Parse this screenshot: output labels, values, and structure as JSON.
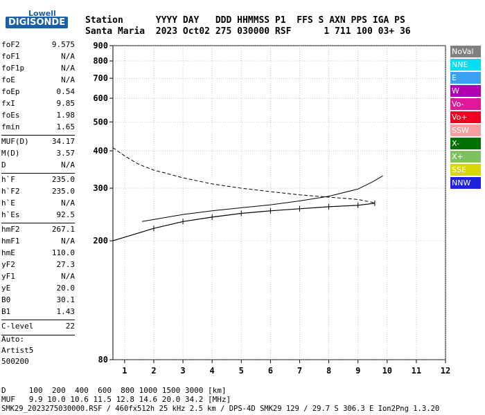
{
  "logo": {
    "line1": "Lowell",
    "line2": "DIGISONDE"
  },
  "header": {
    "row1": "Station      YYYY DAY   DDD HHMMSS P1  FFS S AXN PPS IGA PS",
    "row2": "Santa Maria  2023 Oct02 275 030000 RSF      1 711 100 03+ 36"
  },
  "params": [
    {
      "name": "foF2",
      "value": "9.575"
    },
    {
      "name": "foF1",
      "value": "N/A"
    },
    {
      "name": "foF1p",
      "value": "N/A"
    },
    {
      "name": "foE",
      "value": "N/A"
    },
    {
      "name": "foEp",
      "value": "0.54"
    },
    {
      "name": "fxI",
      "value": "9.85"
    },
    {
      "name": "foEs",
      "value": "1.98"
    },
    {
      "name": "fmin",
      "value": "1.65"
    },
    {
      "name": "MUF(D)",
      "value": "34.17"
    },
    {
      "name": "M(D)",
      "value": "3.57"
    },
    {
      "name": "D",
      "value": "N/A"
    },
    {
      "name": "h`F",
      "value": "235.0"
    },
    {
      "name": "h`F2",
      "value": "235.0"
    },
    {
      "name": "h`E",
      "value": "N/A"
    },
    {
      "name": "h`Es",
      "value": "92.5"
    },
    {
      "name": "hmF2",
      "value": "267.1"
    },
    {
      "name": "hmF1",
      "value": "N/A"
    },
    {
      "name": "hmE",
      "value": "110.0"
    },
    {
      "name": "yF2",
      "value": "27.3"
    },
    {
      "name": "yF1",
      "value": "N/A"
    },
    {
      "name": "yE",
      "value": "20.0"
    },
    {
      "name": "B0",
      "value": "30.1"
    },
    {
      "name": "B1",
      "value": "1.43"
    },
    {
      "name": "C-level",
      "value": "22"
    }
  ],
  "auto": {
    "line1": "Auto:",
    "line2": "Artist5",
    "line3": "500200"
  },
  "legend": [
    {
      "label": "NoVal",
      "color": "#808080"
    },
    {
      "label": "NNE",
      "color": "#00e0f0"
    },
    {
      "label": "E",
      "color": "#3aa0f0"
    },
    {
      "label": "W",
      "color": "#b000b0"
    },
    {
      "label": "Vo-",
      "color": "#e0189a"
    },
    {
      "label": "Vo+",
      "color": "#f00020"
    },
    {
      "label": "SSW",
      "color": "#f5a0a0"
    },
    {
      "label": "X-",
      "color": "#007000"
    },
    {
      "label": "X+",
      "color": "#80c060"
    },
    {
      "label": "SSE",
      "color": "#d8d800"
    },
    {
      "label": "NNW",
      "color": "#2020e0"
    }
  ],
  "footer": {
    "row1": "D     100  200  400  600  800 1000 1500 3000 [km]",
    "row2": "MUF   9.9 10.0 10.6 11.5 12.8 14.6 20.0 34.2 [MHz]",
    "row3": "SMK29_2023275030000.RSF / 460fx512h 25 kHz 2.5 km / DPS-4D SMK29 129 / 29.7 S 306.3 E Ion2Png 1.3.20"
  },
  "chart_data": {
    "type": "scatter",
    "title": "",
    "xlabel": "",
    "ylabel": "",
    "xlim": [
      0.6,
      12.0
    ],
    "ylim": [
      80,
      900
    ],
    "y_axis": "log",
    "x_ticks": [
      "1",
      "2",
      "3",
      "4",
      "5",
      "6",
      "7",
      "8",
      "9",
      "10",
      "11",
      "12"
    ],
    "y_ticks": [
      "80",
      "200",
      "300",
      "400",
      "500",
      "600",
      "700",
      "800",
      "900"
    ],
    "grid": true,
    "legend_position": "right",
    "profile_line": {
      "color": "#000000",
      "points": [
        [
          0.6,
          200
        ],
        [
          2.0,
          220
        ],
        [
          3.0,
          232
        ],
        [
          4.0,
          240
        ],
        [
          5.0,
          247
        ],
        [
          6.0,
          252
        ],
        [
          7.0,
          256
        ],
        [
          8.0,
          260
        ],
        [
          9.0,
          263
        ],
        [
          9.575,
          267.1
        ]
      ]
    },
    "trace_line": {
      "color": "#000000",
      "points": [
        [
          1.6,
          232
        ],
        [
          3.0,
          245
        ],
        [
          4.0,
          252
        ],
        [
          5.0,
          258
        ],
        [
          6.0,
          264
        ],
        [
          7.0,
          272
        ],
        [
          8.0,
          282
        ],
        [
          9.0,
          298
        ],
        [
          9.5,
          315
        ],
        [
          9.85,
          330
        ]
      ]
    },
    "dashed_curve": {
      "color": "#000000",
      "points": [
        [
          0.6,
          410
        ],
        [
          1.0,
          385
        ],
        [
          1.5,
          360
        ],
        [
          2.0,
          345
        ],
        [
          2.5,
          335
        ],
        [
          3.0,
          325
        ],
        [
          4.0,
          310
        ],
        [
          5.0,
          300
        ],
        [
          6.0,
          292
        ],
        [
          7.0,
          285
        ],
        [
          8.0,
          280
        ],
        [
          9.0,
          275
        ],
        [
          9.575,
          268
        ]
      ]
    }
  }
}
